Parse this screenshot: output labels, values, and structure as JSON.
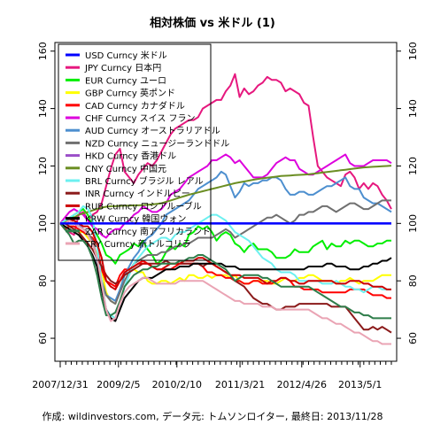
{
  "chart_data": {
    "type": "line",
    "title": "相対株価 vs 米ドル (1)",
    "footer": "作成: wildinvestors.com, データ元: トムソンロイター, 最終日: 2013/11/28",
    "ylim": [
      52,
      163
    ],
    "yticks": [
      60,
      80,
      100,
      120,
      140,
      160
    ],
    "xlim": [
      0,
      72
    ],
    "xticks": [
      {
        "x": 0,
        "label": "2007/12/31"
      },
      {
        "x": 13.4,
        "label": "2009/2/5"
      },
      {
        "x": 25.7,
        "label": "2010/2/10"
      },
      {
        "x": 39,
        "label": "2011/3/21"
      },
      {
        "x": 52,
        "label": "2012/4/26"
      },
      {
        "x": 64.3,
        "label": "2013/5/1"
      }
    ],
    "minor_ticks": 60,
    "reference_line_y": 100,
    "legend_position": "top-left",
    "series": [
      {
        "name": "USD Curncy 米ドル",
        "color": "#0000ff",
        "values": [
          100,
          100,
          100,
          100,
          100,
          100,
          100,
          100,
          100,
          100,
          100,
          100,
          100,
          100,
          100,
          100,
          100,
          100,
          100,
          100,
          100,
          100,
          100,
          100,
          100,
          100,
          100,
          100,
          100,
          100,
          100,
          100,
          100,
          100,
          100,
          100,
          100,
          100,
          100,
          100,
          100,
          100,
          100,
          100,
          100,
          100,
          100,
          100,
          100,
          100,
          100,
          100,
          100,
          100,
          100,
          100,
          100,
          100,
          100,
          100,
          100,
          100,
          100,
          100,
          100,
          100,
          100,
          100,
          100,
          100,
          100,
          100,
          100
        ]
      },
      {
        "name": "JPY Curncy 日本円",
        "color": "#e6187e",
        "values": [
          100,
          98,
          97,
          96,
          103,
          104,
          101,
          103,
          104,
          107,
          113,
          119,
          124,
          126,
          118,
          116,
          114,
          117,
          119,
          121,
          120,
          122,
          125,
          128,
          131,
          133,
          134,
          135,
          136,
          136,
          137,
          140,
          141,
          142,
          143,
          143,
          146,
          148,
          152,
          144,
          147,
          145,
          146,
          148,
          149,
          151,
          150,
          150,
          149,
          146,
          147,
          146,
          145,
          142,
          141,
          130,
          120,
          118,
          116,
          115,
          114,
          113,
          117,
          118,
          116,
          112,
          114,
          112,
          114,
          113,
          110,
          108,
          105
        ]
      },
      {
        "name": "EUR Curncy ユーロ",
        "color": "#00ee00",
        "values": [
          100,
          100,
          101,
          103,
          104,
          105,
          103,
          99,
          96,
          93,
          89,
          88,
          86,
          89,
          90,
          91,
          93,
          92,
          94,
          91,
          89,
          86,
          87,
          90,
          92,
          91,
          93,
          92,
          96,
          97,
          99,
          98,
          99,
          97,
          94,
          96,
          97,
          96,
          93,
          92,
          90,
          92,
          93,
          91,
          91,
          91,
          90,
          88,
          88,
          88,
          89,
          91,
          90,
          90,
          90,
          92,
          93,
          94,
          91,
          93,
          92,
          92,
          94,
          93,
          94,
          94,
          93,
          92,
          92,
          93,
          93,
          94,
          94
        ]
      },
      {
        "name": "GBP Curncy 英ポンド",
        "color": "#ffff00",
        "values": [
          100,
          100,
          99,
          98,
          97,
          97,
          95,
          93,
          89,
          84,
          76,
          73,
          72,
          77,
          82,
          83,
          84,
          83,
          83,
          80,
          79,
          79,
          80,
          80,
          79,
          80,
          81,
          80,
          82,
          82,
          81,
          81,
          82,
          81,
          82,
          82,
          82,
          81,
          82,
          80,
          79,
          79,
          80,
          80,
          80,
          80,
          79,
          79,
          80,
          81,
          80,
          80,
          81,
          81,
          82,
          82,
          81,
          80,
          80,
          80,
          79,
          80,
          80,
          81,
          80,
          79,
          80,
          80,
          80,
          81,
          82,
          82,
          82
        ]
      },
      {
        "name": "CAD Curncy カナダドル",
        "color": "#ff0000",
        "values": [
          100,
          98,
          99,
          99,
          98,
          97,
          96,
          95,
          92,
          84,
          80,
          79,
          78,
          82,
          84,
          84,
          85,
          86,
          87,
          86,
          85,
          84,
          84,
          84,
          84,
          85,
          86,
          86,
          86,
          86,
          86,
          85,
          83,
          83,
          82,
          82,
          81,
          81,
          80,
          80,
          79,
          79,
          80,
          80,
          79,
          79,
          79,
          80,
          81,
          81,
          80,
          78,
          78,
          77,
          77,
          77,
          77,
          76,
          76,
          76,
          76,
          76,
          76,
          77,
          77,
          77,
          77,
          76,
          75,
          75,
          75,
          74,
          74
        ]
      },
      {
        "name": "CHF Curncy スイス フラン",
        "color": "#dd00dd",
        "values": [
          100,
          102,
          104,
          105,
          104,
          103,
          101,
          99,
          98,
          96,
          95,
          97,
          98,
          98,
          100,
          101,
          103,
          104,
          106,
          105,
          104,
          104,
          105,
          107,
          110,
          111,
          112,
          114,
          116,
          117,
          118,
          119,
          120,
          122,
          122,
          123,
          124,
          123,
          121,
          122,
          120,
          118,
          116,
          116,
          116,
          117,
          119,
          121,
          122,
          123,
          122,
          122,
          119,
          118,
          117,
          117,
          118,
          119,
          120,
          121,
          122,
          123,
          124,
          121,
          120,
          120,
          120,
          121,
          122,
          122,
          122,
          122,
          121
        ]
      },
      {
        "name": "AUD Curncy オーストラリアドル",
        "color": "#4d8fcf",
        "values": [
          100,
          100,
          102,
          101,
          100,
          98,
          97,
          94,
          87,
          80,
          75,
          74,
          73,
          77,
          82,
          85,
          88,
          90,
          93,
          95,
          96,
          98,
          100,
          103,
          104,
          105,
          106,
          107,
          108,
          110,
          112,
          113,
          114,
          115,
          116,
          118,
          117,
          113,
          109,
          111,
          114,
          113,
          114,
          114,
          115,
          115,
          116,
          116,
          115,
          112,
          110,
          110,
          111,
          111,
          110,
          110,
          111,
          112,
          113,
          113,
          114,
          115,
          116,
          113,
          112,
          112,
          109,
          108,
          107,
          107,
          106,
          105,
          104
        ]
      },
      {
        "name": "NZD Curncy ニュージーランドドル",
        "color": "#707070",
        "values": [
          100,
          100,
          101,
          100,
          99,
          98,
          97,
          94,
          88,
          80,
          75,
          73,
          72,
          76,
          80,
          83,
          86,
          87,
          88,
          89,
          89,
          89,
          90,
          90,
          91,
          92,
          92,
          93,
          93,
          94,
          95,
          95,
          95,
          95,
          96,
          97,
          98,
          97,
          95,
          96,
          97,
          98,
          99,
          100,
          101,
          102,
          102,
          103,
          102,
          101,
          100,
          101,
          103,
          103,
          104,
          104,
          105,
          106,
          106,
          105,
          104,
          105,
          106,
          107,
          107,
          106,
          105,
          105,
          106,
          107,
          108,
          108,
          108
        ]
      },
      {
        "name": "HKD Curncy 香港ドル",
        "color": "#9b4fc8",
        "values": [
          100,
          100,
          100,
          100,
          100,
          100,
          100,
          100,
          100,
          100,
          100,
          100,
          100,
          100,
          100,
          100,
          100,
          100,
          100,
          100,
          100,
          100,
          100,
          100,
          100,
          100,
          100,
          100,
          100,
          100,
          100,
          100,
          100,
          100,
          100,
          100,
          100,
          100,
          100,
          100,
          100,
          100,
          100,
          100,
          100,
          100,
          100,
          100,
          100,
          100,
          100,
          100,
          100,
          100,
          100,
          100,
          100,
          100,
          100,
          100,
          100,
          100,
          100,
          100,
          100,
          100,
          100,
          100,
          100,
          100,
          100,
          100,
          100
        ]
      },
      {
        "name": "CNY Curncy 中国元",
        "color": "#6b8e23",
        "values": [
          100,
          100.5,
          101,
          102,
          103,
          103.5,
          104,
          104.5,
          105,
          105.5,
          105.8,
          106,
          106,
          106.1,
          106.2,
          106.2,
          106.3,
          106.3,
          106.4,
          106.5,
          106.6,
          106.8,
          107,
          107.5,
          108,
          108.5,
          109,
          109.5,
          110,
          110.4,
          110.8,
          111.2,
          111.6,
          112,
          112.4,
          112.8,
          113.2,
          113.6,
          114,
          114.3,
          114.6,
          114.9,
          115.2,
          115.5,
          115.7,
          115.9,
          116.1,
          116.3,
          116.5,
          116.6,
          116.7,
          116.8,
          116.9,
          117,
          117.1,
          117.3,
          117.5,
          117.7,
          117.9,
          118.1,
          118.3,
          118.5,
          118.7,
          118.9,
          119.1,
          119.3,
          119.5,
          119.6,
          119.7,
          119.8,
          119.9,
          120,
          120.1
        ]
      },
      {
        "name": "BRL Curncy ブラジル レアル",
        "color": "#6cf0f0",
        "values": [
          100,
          101,
          102,
          103,
          104,
          106,
          105,
          102,
          92,
          80,
          70,
          68,
          67,
          72,
          78,
          82,
          86,
          88,
          90,
          92,
          93,
          94,
          95,
          95,
          94,
          96,
          97,
          97,
          98,
          99,
          100,
          101,
          102,
          103,
          103,
          102,
          101,
          99,
          97,
          96,
          95,
          94,
          92,
          90,
          88,
          87,
          86,
          84,
          83,
          83,
          83,
          82,
          80,
          80,
          80,
          80,
          80,
          79,
          79,
          79,
          80,
          79,
          78,
          78,
          77,
          77,
          76,
          77,
          78,
          78,
          77,
          77,
          77
        ]
      },
      {
        "name": "INR Curncy インドルピー",
        "color": "#8b1a1a",
        "values": [
          100,
          100,
          99,
          98,
          97,
          95,
          93,
          91,
          88,
          85,
          82,
          80,
          79,
          80,
          82,
          83,
          84,
          85,
          86,
          86,
          86,
          86,
          86,
          87,
          86,
          86,
          86,
          86,
          86,
          86,
          86,
          85,
          86,
          86,
          85,
          84,
          83,
          82,
          80,
          79,
          78,
          76,
          74,
          73,
          72,
          72,
          71,
          70,
          70,
          71,
          71,
          71,
          72,
          72,
          72,
          72,
          72,
          72,
          72,
          71,
          71,
          71,
          71,
          69,
          67,
          65,
          63,
          63,
          64,
          63,
          64,
          63,
          62
        ]
      },
      {
        "name": "RUB Curncy ロシアルーブル",
        "color": "#cc0000",
        "values": [
          100,
          100,
          101,
          101,
          100,
          99,
          99,
          97,
          93,
          88,
          80,
          78,
          77,
          80,
          83,
          84,
          85,
          86,
          86,
          86,
          85,
          84,
          84,
          85,
          86,
          86,
          86,
          87,
          87,
          87,
          88,
          88,
          87,
          86,
          85,
          84,
          83,
          82,
          82,
          82,
          81,
          81,
          81,
          81,
          80,
          79,
          80,
          80,
          81,
          81,
          80,
          80,
          79,
          79,
          80,
          80,
          80,
          80,
          80,
          80,
          79,
          79,
          79,
          80,
          80,
          80,
          79,
          79,
          78,
          78,
          78,
          77,
          77
        ]
      },
      {
        "name": "KRW Curncy 韓国ウォン",
        "color": "#000000",
        "values": [
          100,
          99,
          98,
          97,
          96,
          94,
          92,
          89,
          85,
          77,
          70,
          67,
          66,
          70,
          74,
          76,
          78,
          80,
          81,
          81,
          81,
          82,
          83,
          84,
          84,
          84,
          85,
          85,
          85,
          86,
          86,
          86,
          86,
          86,
          86,
          86,
          85,
          85,
          85,
          84,
          84,
          84,
          84,
          84,
          84,
          84,
          84,
          84,
          84,
          84,
          84,
          84,
          84,
          84,
          85,
          85,
          85,
          85,
          86,
          86,
          85,
          85,
          85,
          84,
          84,
          84,
          85,
          85,
          86,
          86,
          87,
          87,
          88
        ]
      },
      {
        "name": "ZAR Curncy 南アフリカランド",
        "color": "#2e7d4a",
        "values": [
          100,
          98,
          96,
          93,
          94,
          94,
          92,
          88,
          82,
          74,
          68,
          68,
          69,
          73,
          78,
          80,
          82,
          83,
          84,
          84,
          85,
          85,
          86,
          86,
          86,
          86,
          87,
          87,
          88,
          88,
          89,
          89,
          88,
          87,
          86,
          85,
          84,
          82,
          80,
          81,
          82,
          82,
          82,
          82,
          81,
          81,
          80,
          79,
          78,
          78,
          78,
          78,
          78,
          78,
          78,
          77,
          76,
          75,
          74,
          73,
          72,
          71,
          71,
          70,
          69,
          69,
          68,
          68,
          67,
          67,
          67,
          67,
          67
        ]
      },
      {
        "name": "TRY Curncy 新トルコリラ",
        "color": "#eaa4b4",
        "values": [
          100,
          100,
          101,
          100,
          99,
          98,
          96,
          93,
          88,
          79,
          70,
          66,
          67,
          72,
          76,
          78,
          79,
          80,
          81,
          81,
          80,
          79,
          79,
          79,
          79,
          79,
          80,
          80,
          80,
          80,
          80,
          80,
          79,
          78,
          77,
          76,
          75,
          74,
          73,
          73,
          72,
          72,
          72,
          72,
          71,
          71,
          71,
          70,
          70,
          70,
          70,
          70,
          70,
          70,
          70,
          69,
          68,
          67,
          67,
          66,
          65,
          65,
          64,
          63,
          62,
          62,
          61,
          60,
          59,
          59,
          58,
          58,
          58
        ]
      }
    ]
  }
}
